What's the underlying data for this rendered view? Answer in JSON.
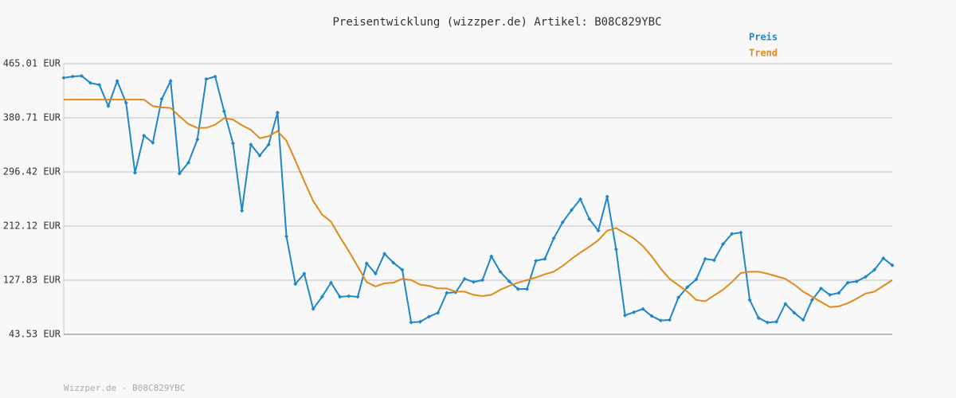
{
  "chart_data": {
    "type": "line",
    "title": "Preisentwicklung (wizzper.de) Artikel: B08C829YBC",
    "footer": "Wizzper.de - B08C829YBC",
    "categories": [
      null,
      null,
      null,
      null,
      null,
      null,
      null,
      null,
      null,
      null,
      null,
      null,
      null,
      null,
      null,
      null,
      null,
      null,
      null,
      null,
      null,
      null,
      null,
      null,
      null,
      null,
      null,
      null,
      null,
      null,
      null,
      null,
      null,
      null,
      null,
      null,
      null,
      null,
      null,
      null,
      null,
      null,
      null,
      null,
      null,
      null,
      null,
      null,
      null,
      null,
      null,
      null,
      null,
      null,
      null,
      null,
      null,
      null,
      null,
      null,
      null,
      null,
      null,
      null,
      null,
      null,
      null,
      null,
      null,
      null,
      null,
      null,
      null,
      null,
      null,
      null,
      null,
      null,
      null,
      null,
      null,
      null,
      null,
      null,
      null,
      null,
      null,
      null,
      null,
      null,
      null,
      null,
      null,
      null
    ],
    "series": [
      {
        "name": "Preis",
        "color": "#1f86c8",
        "markers": true,
        "values": [
          443,
          445,
          446,
          435,
          432,
          399,
          438,
          404,
          295,
          353,
          342,
          410,
          438,
          294,
          311,
          347,
          441,
          445,
          391,
          341,
          236,
          339,
          322,
          339,
          389,
          196,
          122,
          138,
          83,
          102,
          124,
          102,
          103,
          102,
          154,
          138,
          169,
          155,
          144,
          62,
          63,
          71,
          77,
          108,
          109,
          130,
          125,
          128,
          165,
          141,
          126,
          114,
          114,
          158,
          161,
          193,
          218,
          237,
          254,
          223,
          205,
          258,
          176,
          73,
          78,
          83,
          72,
          65,
          66,
          101,
          117,
          129,
          161,
          159,
          184,
          200,
          202,
          97,
          69,
          62,
          63,
          91,
          77,
          66,
          97,
          115,
          105,
          108,
          124,
          126,
          133,
          144,
          162,
          151
        ]
      },
      {
        "name": "Trend",
        "color": "#e08a1e",
        "markers": false,
        "values": [
          409,
          409,
          409,
          409,
          409,
          409,
          409,
          409,
          409,
          409,
          399,
          397,
          396,
          383,
          371,
          365,
          365,
          370,
          380,
          378,
          369,
          362,
          349,
          352,
          360,
          345,
          314,
          282,
          251,
          230,
          219,
          195,
          173,
          149,
          125,
          118,
          123,
          124,
          130,
          128,
          121,
          119,
          115,
          115,
          110,
          110,
          105,
          103,
          105,
          113,
          119,
          124,
          128,
          132,
          137,
          141,
          150,
          161,
          171,
          180,
          190,
          205,
          209,
          201,
          193,
          181,
          165,
          146,
          130,
          120,
          110,
          97,
          95,
          104,
          113,
          125,
          139,
          141,
          141,
          138,
          134,
          130,
          121,
          110,
          102,
          94,
          86,
          87,
          92,
          99,
          107,
          110,
          119,
          128
        ]
      }
    ],
    "ylim": [
      43.53,
      465.01
    ],
    "yticks": [
      {
        "value": 43.53,
        "label": "43.53 EUR"
      },
      {
        "value": 127.83,
        "label": "127.83 EUR"
      },
      {
        "value": 212.12,
        "label": "212.12 EUR"
      },
      {
        "value": 296.42,
        "label": "296.42 EUR"
      },
      {
        "value": 380.71,
        "label": "380.71 EUR"
      },
      {
        "value": 465.01,
        "label": "465.01 EUR"
      }
    ],
    "grid": true
  }
}
